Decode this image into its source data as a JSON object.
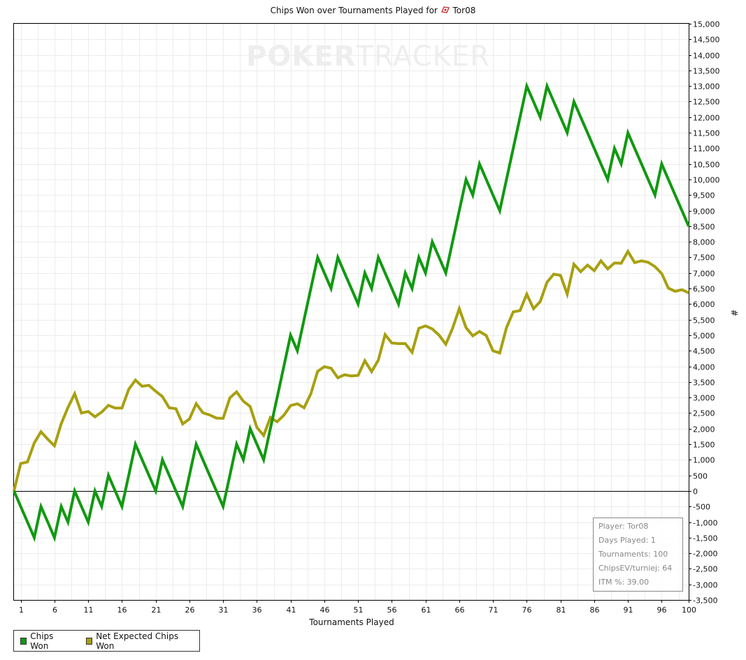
{
  "chart_data": {
    "type": "line",
    "title": "Chips Won over Tournaments Played for",
    "player_name": "Tor08",
    "xlabel": "Tournaments Played",
    "ylabel": "#",
    "xlim": [
      0,
      100
    ],
    "ylim": [
      -3500,
      15000
    ],
    "x_ticks": [
      1,
      6,
      11,
      16,
      21,
      26,
      31,
      36,
      41,
      46,
      51,
      56,
      61,
      66,
      71,
      76,
      81,
      86,
      91,
      96,
      100
    ],
    "y_tick_step": 500,
    "grid": true,
    "legend_position": "bottom-left",
    "watermark": {
      "part1": "POKER",
      "part2": "TRACKER"
    },
    "series": [
      {
        "name": "Chips Won",
        "color": "#119911",
        "values": [
          0,
          -500,
          -1000,
          -1500,
          -500,
          -1000,
          -1500,
          -500,
          -1000,
          0,
          -500,
          -1000,
          0,
          -500,
          500,
          0,
          -500,
          500,
          1500,
          1000,
          500,
          0,
          1000,
          500,
          0,
          -500,
          500,
          1500,
          1000,
          500,
          0,
          -500,
          500,
          1500,
          1000,
          2000,
          1500,
          1000,
          2000,
          3000,
          4000,
          5000,
          4500,
          5500,
          6500,
          7500,
          7000,
          6500,
          7500,
          7000,
          6500,
          6000,
          7000,
          6500,
          7500,
          7000,
          6500,
          6000,
          7000,
          6500,
          7500,
          7000,
          8000,
          7500,
          7000,
          8000,
          9000,
          10000,
          9500,
          10500,
          10000,
          9500,
          9000,
          10000,
          11000,
          12000,
          13000,
          12500,
          12000,
          13000,
          12500,
          12000,
          11500,
          12500,
          12000,
          11500,
          11000,
          10500,
          10000,
          11000,
          10500,
          11500,
          11000,
          10500,
          10000,
          9500,
          10500,
          10000,
          9500,
          9000,
          8500
        ]
      },
      {
        "name": "Net Expected Chips Won",
        "color": "#a8a010",
        "values": [
          0,
          880,
          930,
          1540,
          1900,
          1660,
          1450,
          2160,
          2680,
          3120,
          2500,
          2550,
          2380,
          2530,
          2750,
          2660,
          2660,
          3260,
          3560,
          3360,
          3390,
          3200,
          3030,
          2670,
          2640,
          2150,
          2310,
          2800,
          2510,
          2440,
          2340,
          2330,
          2990,
          3180,
          2880,
          2710,
          2040,
          1780,
          2360,
          2220,
          2430,
          2740,
          2800,
          2670,
          3120,
          3840,
          3990,
          3940,
          3630,
          3730,
          3690,
          3710,
          4180,
          3830,
          4200,
          5020,
          4750,
          4730,
          4730,
          4450,
          5220,
          5300,
          5200,
          5000,
          4710,
          5220,
          5850,
          5240,
          4980,
          5120,
          4990,
          4500,
          4430,
          5240,
          5750,
          5790,
          6320,
          5850,
          6080,
          6700,
          6960,
          6920,
          6320,
          7280,
          7040,
          7250,
          7070,
          7390,
          7130,
          7320,
          7310,
          7690,
          7330,
          7390,
          7340,
          7200,
          6980,
          6510,
          6410,
          6460,
          6360
        ]
      }
    ]
  },
  "stats": {
    "player": "Player: Tor08",
    "days_played": "Days Played: 1",
    "tournaments": "Tournaments: 100",
    "chips_ev": "ChipsEV/turniej: 64",
    "itm": "ITM %: 39.00"
  }
}
